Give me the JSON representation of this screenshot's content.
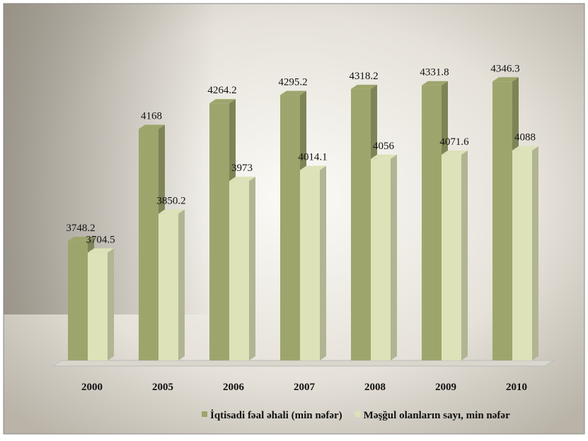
{
  "chart_data": {
    "type": "bar3d",
    "categories": [
      "2000",
      "2005",
      "2006",
      "2007",
      "2008",
      "2009",
      "2010"
    ],
    "series": [
      {
        "name": "İqtisadi fəal əhali (min nəfər)",
        "color": "#9ea56c",
        "values": [
          3748.2,
          4168,
          4264.2,
          4295.2,
          4318.2,
          4331.8,
          4346.3
        ]
      },
      {
        "name": "Məşğul olanların sayı, min nəfər",
        "color": "#dde2b8",
        "values": [
          3704.5,
          3850.2,
          3973,
          4014.1,
          4056,
          4071.6,
          4088
        ]
      }
    ],
    "ylim": [
      3300,
      4400
    ]
  }
}
